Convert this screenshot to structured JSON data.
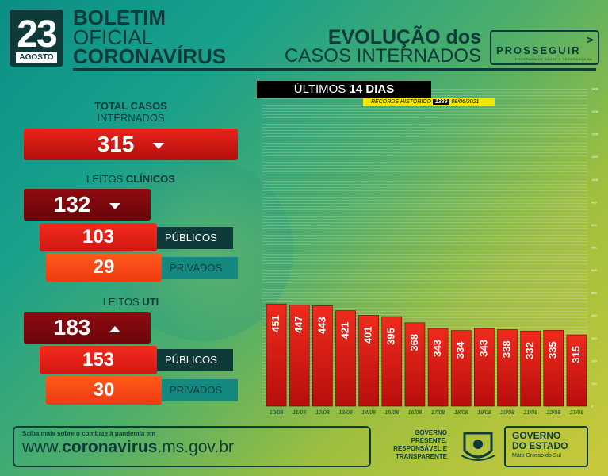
{
  "header": {
    "day": "23",
    "month": "AGOSTO",
    "title_line1": "BOLETIM",
    "title_line2": "OFICIAL",
    "title_line3": "CORONAVÍRUS",
    "evolution_line1": "EVOLUÇÃO dos",
    "evolution_line2": "CASOS INTERNADOS",
    "brand_name": "PROSSEGUIR",
    "brand_sub": "PROGRAMA DE SAÚDE E SEGURANÇA NA ECONOMIA"
  },
  "summary": {
    "total_label_bold": "TOTAL CASOS",
    "total_label": "INTERNADOS",
    "total_value": "315",
    "clinicos_label": "LEITOS",
    "clinicos_label_bold": "CLÍNICOS",
    "clinicos_value": "132",
    "clinicos_publicos": "103",
    "clinicos_privados": "29",
    "uti_label": "LEITOS",
    "uti_label_bold": "UTI",
    "uti_value": "183",
    "uti_publicos": "153",
    "uti_privados": "30",
    "publicos_label": "PÚBLICOS",
    "privados_label": "PRIVADOS"
  },
  "chart_header": {
    "title_prefix": "ÚLTIMOS",
    "title_bold": "14 DIAS",
    "record_label": "RECORDE HISTÓRICO",
    "record_value": "1339",
    "record_date": "08/06/2021"
  },
  "chart_data": {
    "type": "bar",
    "categories": [
      "10/08",
      "11/08",
      "12/08",
      "13/08",
      "14/08",
      "15/08",
      "16/08",
      "17/08",
      "18/08",
      "19/08",
      "20/08",
      "21/08",
      "22/08",
      "23/08"
    ],
    "values": [
      451,
      447,
      443,
      421,
      401,
      395,
      368,
      343,
      334,
      343,
      338,
      332,
      335,
      315
    ],
    "ylim": [
      0,
      1400
    ],
    "yticks": [
      0,
      100,
      200,
      300,
      400,
      500,
      600,
      700,
      800,
      900,
      1000,
      1100,
      1200,
      1300,
      1400
    ]
  },
  "footer": {
    "info_text": "Saiba mais sobre o combate à pandemia em",
    "url_prefix": "www.",
    "url_bold": "coronavirus",
    "url_suffix": ".ms.gov.br",
    "slogan1": "GOVERNO",
    "slogan2": "PRESENTE,",
    "slogan3": "RESPONSÁVEL E",
    "slogan4": "TRANSPARENTE",
    "gov1": "GOVERNO",
    "gov2": "DO ESTADO",
    "gov3": "Mato Grosso do Sul"
  },
  "colors": {
    "dark": "#0e3b3a",
    "red": "#e8231b",
    "orange": "#ff5a1a"
  }
}
